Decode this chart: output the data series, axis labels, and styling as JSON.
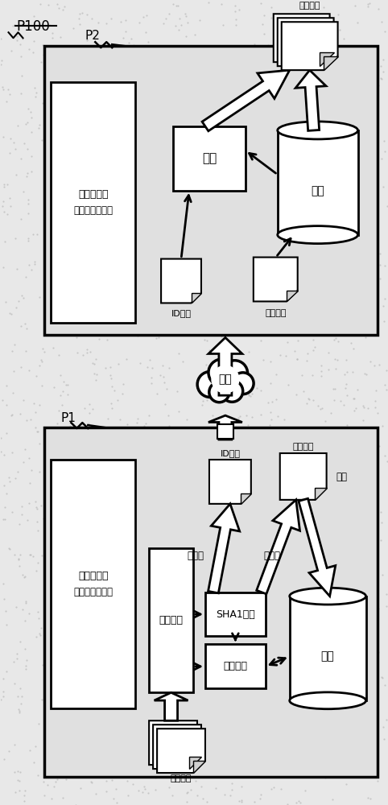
{
  "bg_color": "#e8e8e8",
  "white": "#ffffff",
  "black": "#000000",
  "p100_label": "P100",
  "p2_label": "P2",
  "p1_label": "P1",
  "recv_box_label1": "接收侧装置",
  "recv_box_label2": "（去重服务器）",
  "send_box_label1": "发送侧装置",
  "send_box_label2": "（去重客户端）",
  "huifu_label": "恢复",
  "huancun_label": "缓存",
  "zujue_label": "组块分割",
  "sha1_label": "SHA1计算",
  "hash_label": "哈布搜索",
  "wangluo_label": "网络",
  "id_data_label": "ID数据",
  "real_data_label": "实际数据",
  "recv_data_label": "接收数据",
  "send_data_label": "发送数据",
  "youchongfu_label": "有重复",
  "wuchongfu_label": "无重复",
  "baocun_label": "保存"
}
